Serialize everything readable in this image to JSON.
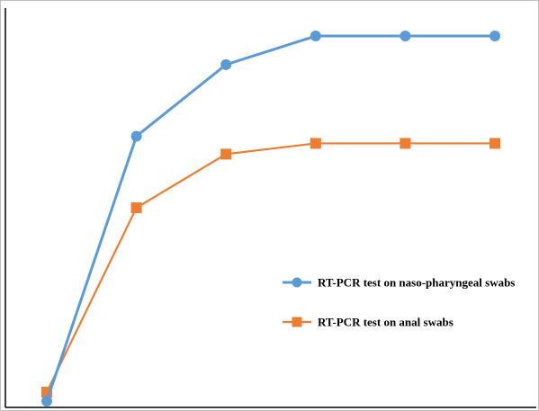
{
  "chart_data": {
    "type": "line",
    "title": "",
    "xlabel": "",
    "ylabel": "",
    "x": [
      1,
      2,
      3,
      4,
      5,
      6
    ],
    "ylim": [
      0,
      10
    ],
    "grid": false,
    "legend_position": "right",
    "series": [
      {
        "name": "RT-PCR test on naso-pharyngeal swabs",
        "values": [
          0.0,
          7.4,
          9.4,
          10.2,
          10.2,
          10.2
        ],
        "color": "#5b9bd5",
        "marker": "circle"
      },
      {
        "name": "RT-PCR test on anal swabs",
        "values": [
          0.25,
          5.4,
          6.9,
          7.2,
          7.2,
          7.2
        ],
        "color": "#ed7d31",
        "marker": "square"
      }
    ]
  }
}
